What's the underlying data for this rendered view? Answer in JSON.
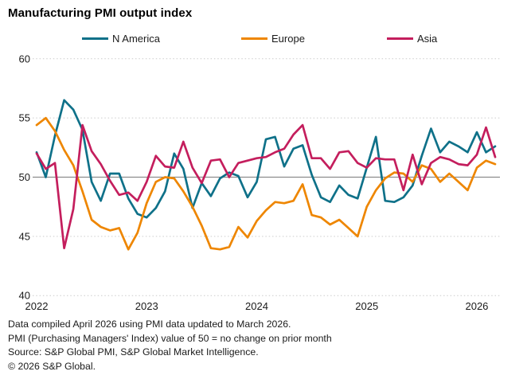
{
  "chart_data": {
    "type": "line",
    "title": "Manufacturing PMI output index",
    "x_interval": "monthly",
    "x_start": "2022-01",
    "x_end": "2026-03",
    "x_tick_labels": [
      "2022",
      "2023",
      "2024",
      "2025",
      "2026"
    ],
    "y_ticks": [
      60,
      55,
      50,
      45,
      40
    ],
    "ylim": [
      40,
      60
    ],
    "reference_line_value": 50,
    "grid": "dotted horizontal lines at 40,45,55,60; solid gray line at 50",
    "legend_position": "top",
    "series": [
      {
        "name": "N America",
        "color": "#0f7189",
        "values": [
          52.1,
          50.0,
          53.5,
          56.5,
          55.7,
          54.0,
          49.6,
          48.0,
          50.3,
          50.3,
          48.2,
          46.9,
          46.6,
          47.4,
          48.8,
          52.0,
          50.7,
          47.4,
          49.5,
          48.4,
          49.9,
          50.4,
          50.1,
          48.3,
          49.6,
          53.2,
          53.4,
          50.9,
          52.4,
          52.7,
          50.2,
          48.3,
          47.9,
          49.3,
          48.5,
          48.2,
          50.8,
          53.4,
          48.0,
          47.9,
          48.3,
          49.3,
          51.8,
          54.1,
          52.1,
          53.0,
          52.6,
          52.1,
          53.8,
          52.1,
          52.6
        ]
      },
      {
        "name": "Europe",
        "color": "#ee8600",
        "values": [
          54.4,
          55.0,
          53.9,
          52.3,
          51.0,
          48.8,
          46.4,
          45.8,
          45.5,
          45.7,
          43.9,
          45.3,
          47.8,
          49.6,
          50.0,
          49.9,
          48.8,
          47.5,
          45.9,
          44.0,
          43.9,
          44.1,
          45.8,
          44.9,
          46.3,
          47.2,
          47.9,
          47.8,
          48.0,
          49.4,
          46.8,
          46.6,
          46.0,
          46.4,
          45.7,
          45.0,
          47.5,
          48.9,
          49.9,
          50.4,
          50.3,
          49.6,
          51.0,
          50.7,
          49.6,
          50.3,
          49.6,
          48.9,
          50.8,
          51.4,
          51.1
        ]
      },
      {
        "name": "Asia",
        "color": "#c41e5d",
        "values": [
          52.0,
          50.7,
          51.2,
          44.0,
          47.3,
          54.4,
          52.2,
          51.1,
          49.7,
          48.5,
          48.7,
          48.0,
          49.6,
          51.8,
          50.9,
          50.8,
          53.0,
          50.8,
          49.5,
          51.4,
          51.5,
          50.0,
          51.2,
          51.4,
          51.6,
          51.7,
          52.1,
          52.4,
          53.6,
          54.4,
          51.6,
          51.6,
          50.7,
          52.1,
          52.2,
          51.2,
          50.8,
          51.6,
          51.5,
          51.5,
          48.9,
          51.9,
          49.4,
          51.2,
          51.7,
          51.5,
          51.1,
          51.0,
          51.9,
          54.2,
          51.7
        ]
      }
    ]
  },
  "footnotes": [
    "Data compiled April 2026 using PMI data updated to March 2026.",
    "PMI (Purchasing Managers' Index) value of 50 = no change on prior month",
    "Source: S&P Global PMI, S&P Global Market Intelligence.",
    "© 2026 S&P Global."
  ],
  "colors": {
    "gridline": "#cbcbcb",
    "reference_line": "#8c8c8c",
    "axis_text": "#1a1a1a"
  }
}
